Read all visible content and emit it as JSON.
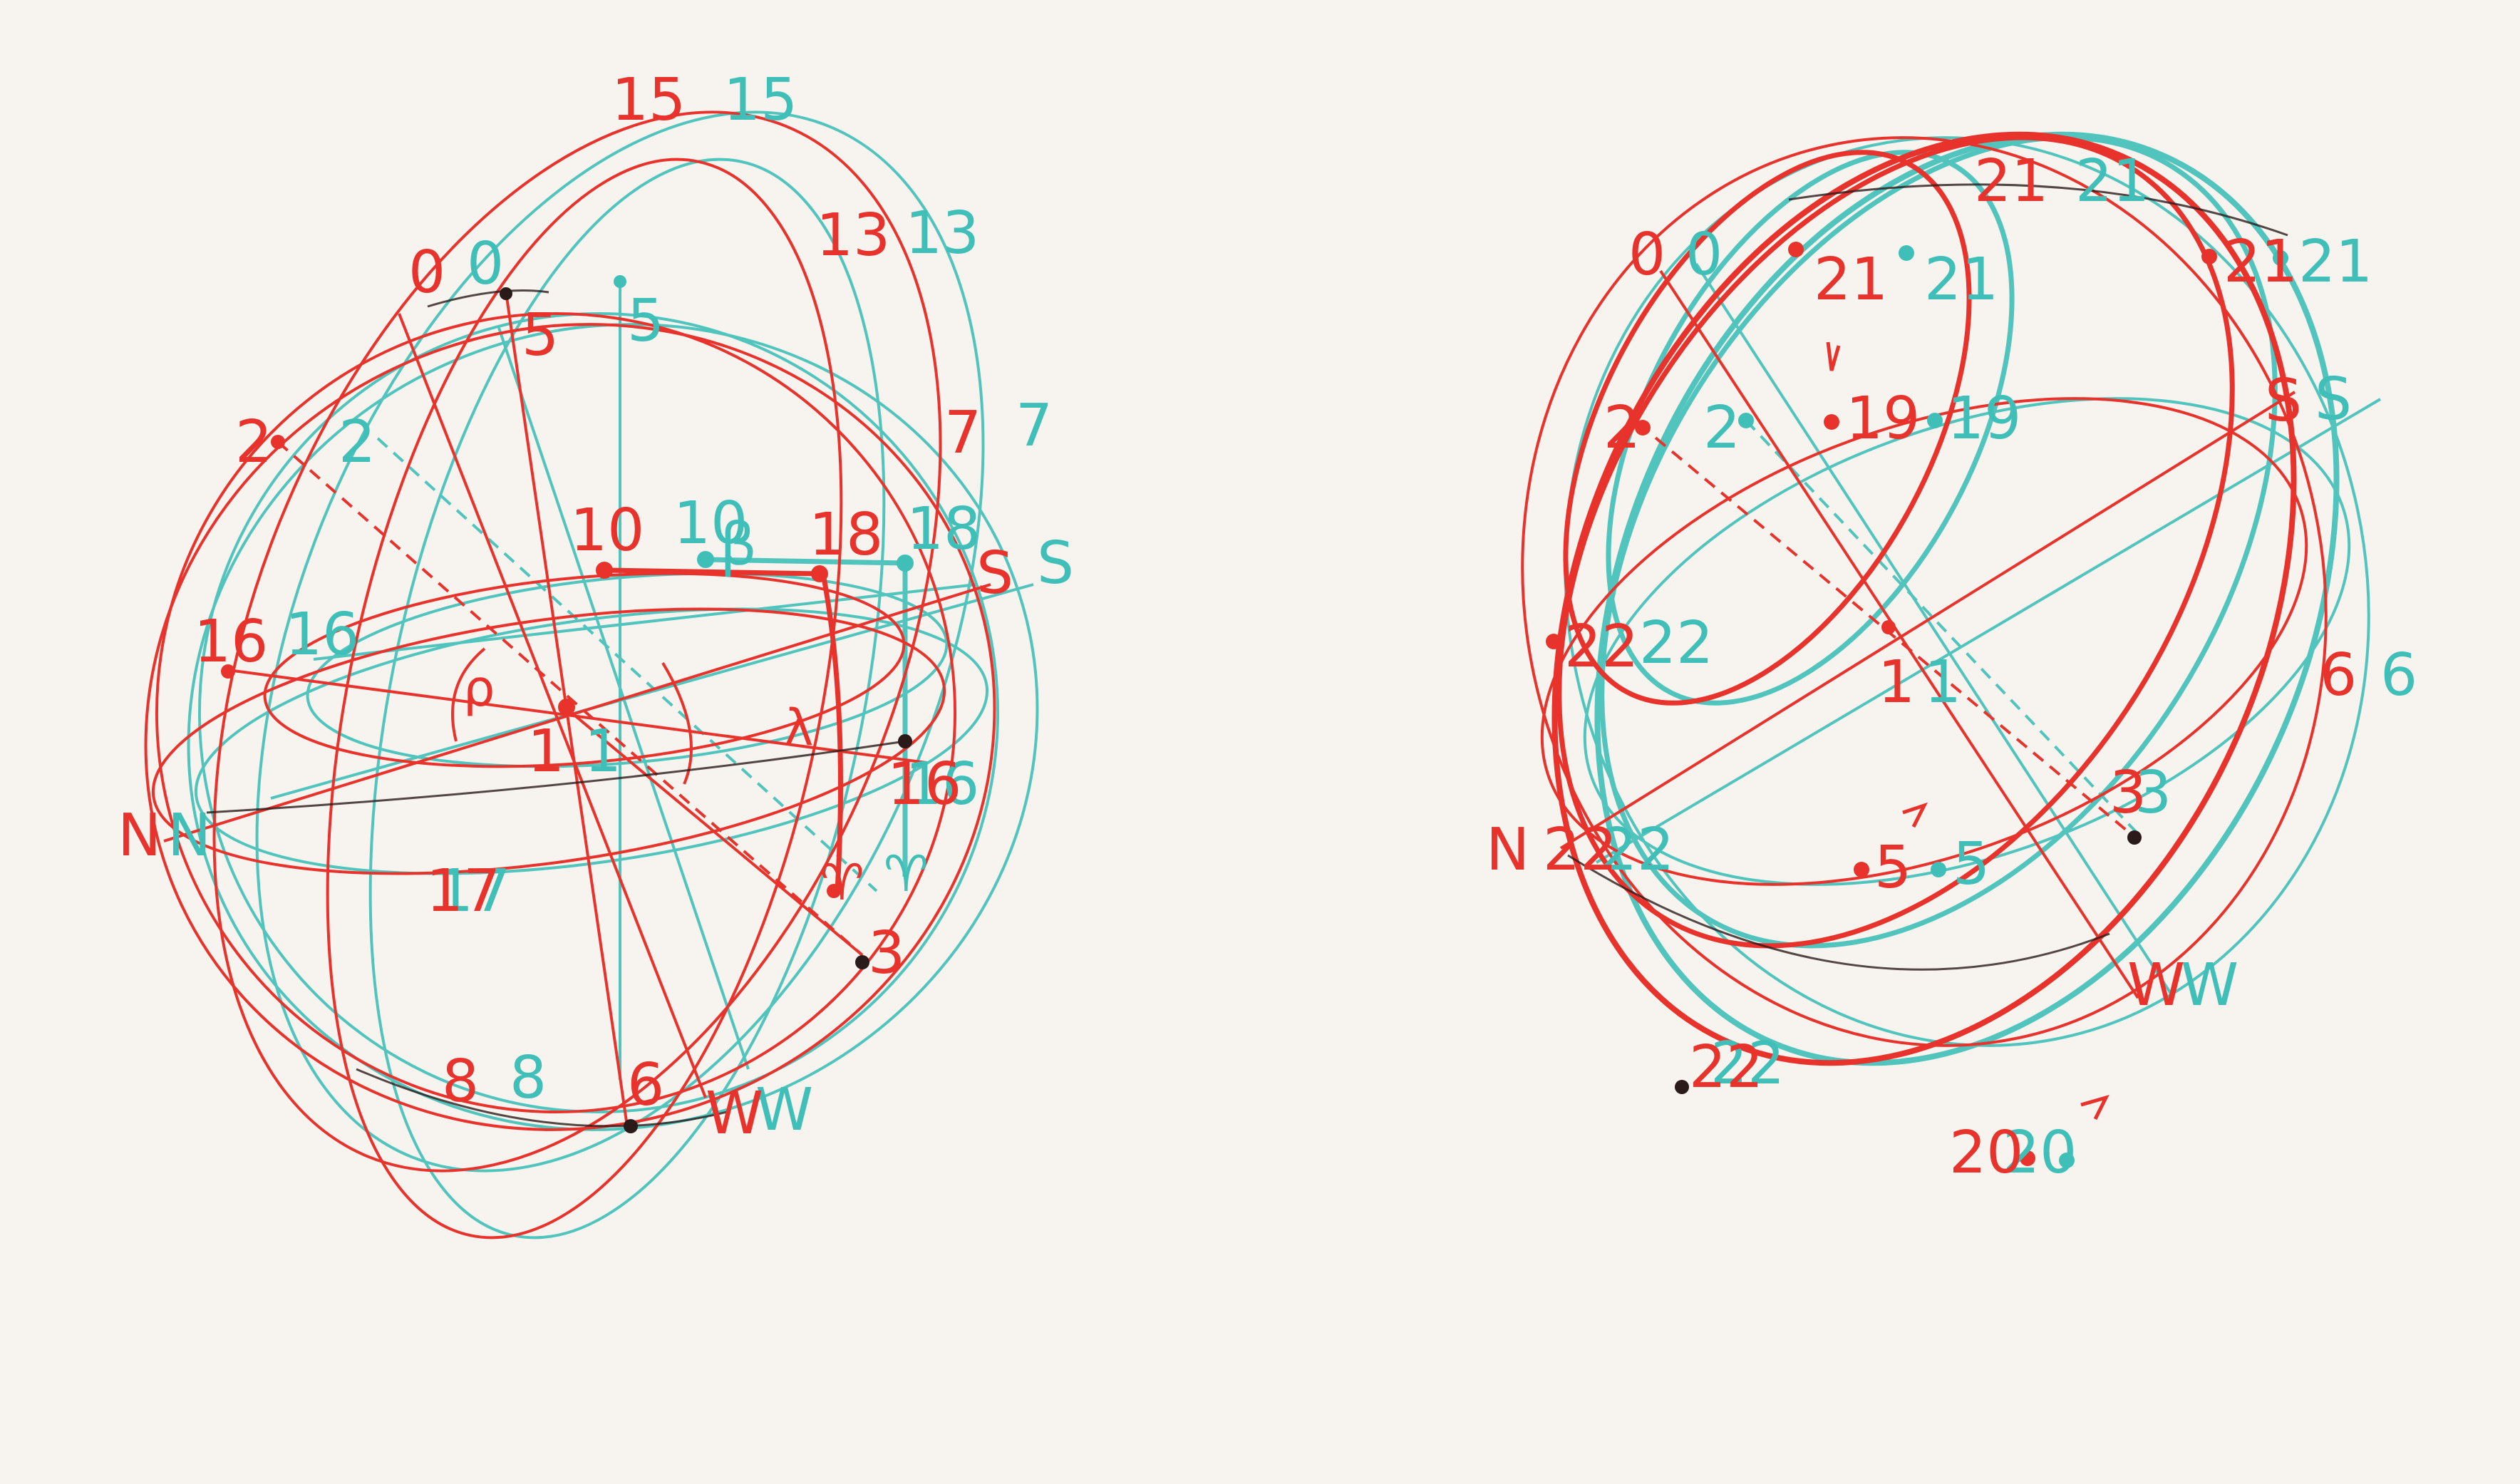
{
  "colors": {
    "background": "#f7f3ee",
    "red": "#e8332c",
    "cyan": "#3fbfb8",
    "dark": "#2a1a1a"
  },
  "left_figure": {
    "labels_red": {
      "l15": "15",
      "l0": "0",
      "l5": "5",
      "l13": "13",
      "l2": "2",
      "l7": "7",
      "l10": "10",
      "l18": "18",
      "lS": "S",
      "l16a": "16",
      "lrho": "ρ",
      "l1": "1",
      "llambda": "λ",
      "lN": "N",
      "l16b": "16",
      "l17": "17",
      "lar": "♈",
      "l3": "3",
      "l8": "8",
      "l6": "6",
      "lW": "W"
    },
    "labels_cyan": {
      "l15": "15",
      "l0": "0",
      "l5": "5",
      "l13": "13",
      "l2": "2",
      "l7": "7",
      "l10": "10",
      "lbeta": "β",
      "l18": "18",
      "lS": "S",
      "l16a": "16",
      "l1": "1",
      "lN": "N",
      "l16b": "16",
      "l17": "17",
      "lar": "♈",
      "l8": "8",
      "lW": "W"
    }
  },
  "right_figure": {
    "labels_red": {
      "l0": "0",
      "l21a": "21",
      "l21b": "21",
      "l21c": "21",
      "l2": "2",
      "l19": "19",
      "lS": "S",
      "l22a": "22",
      "l1": "1",
      "l6": "6",
      "l3": "3",
      "lN": "N",
      "l22b": "22",
      "l5": "5",
      "lW": "W",
      "l22c": "22",
      "l20": "20"
    },
    "labels_cyan": {
      "l0": "0",
      "l21a": "21",
      "l21b": "21",
      "l21c": "21",
      "l2": "2",
      "l19": "19",
      "lS": "S",
      "l22a": "22",
      "l1": "1",
      "l6": "6",
      "l3": "3",
      "l22b": "22",
      "l5": "5",
      "lW": "W",
      "l22c": "22",
      "l20": "20"
    }
  }
}
